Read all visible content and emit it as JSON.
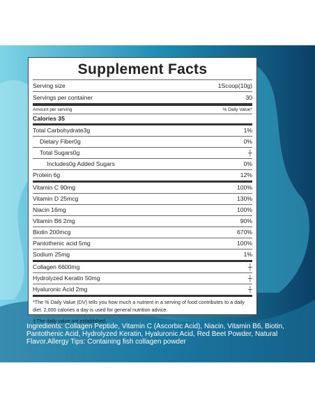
{
  "title": "Supplement Facts",
  "serving": [
    [
      "Serving size",
      "1Scoop(10g)"
    ],
    [
      "Servings per container",
      "30"
    ]
  ],
  "header": [
    "Amount per serving",
    "% Daily Value*"
  ],
  "calories": "Calories 35",
  "sections": [
    [
      {
        "name": "Total Carbohydrate3g",
        "dv": "1%",
        "indent": 0
      },
      {
        "name": "Dietary Fiber0g",
        "dv": "0%",
        "indent": 1
      },
      {
        "name": "Total Sugars0g",
        "dv": "┼",
        "indent": 1
      },
      {
        "name": "Includes0g Added Sugars",
        "dv": "0%",
        "indent": 2
      },
      {
        "name": "Protein 6g",
        "dv": "12%",
        "indent": 0
      }
    ],
    [
      {
        "name": "Vitamin C 90mg",
        "dv": "100%",
        "indent": 0
      },
      {
        "name": "Vitamin D 25mcg",
        "dv": "130%",
        "indent": 0
      },
      {
        "name": "Niacin 16mg",
        "dv": "100%",
        "indent": 0
      },
      {
        "name": "Vitamin B6 2mg",
        "dv": "90%",
        "indent": 0
      },
      {
        "name": "Biotin 200mcg",
        "dv": "670%",
        "indent": 0
      },
      {
        "name": "Pantothenic acid 5mg",
        "dv": "100%",
        "indent": 0
      },
      {
        "name": "Sodium 25mg",
        "dv": "1%",
        "indent": 0
      }
    ],
    [
      {
        "name": "Collagen 6600mg",
        "dv": "┼",
        "indent": 0
      },
      {
        "name": "Hydrolyzed Keratin  50mg",
        "dv": "┼",
        "indent": 0
      },
      {
        "name": "Hyaluronic Acid 2mg",
        "dv": "┼",
        "indent": 0
      }
    ]
  ],
  "footnote": "*The % Daily Value (DV) tells you how much a nutrient in a serving of food contributes to a daily diet. 2,000 calories a day is used for general nutrition advice.",
  "dagger_note": "┼The daily value not established.",
  "ingredients": "Ingredients: Collagen Peptide, Vitamin C (Ascorbic Acid), Niacin, Vitamin B6, Biotin, Pantothenic Acid, Hydrolyzed Keratin, Hyaluronic Acid, Red Beet Powder, Natural Flavor.Allergy Tips: Containing fish collagen powder"
}
